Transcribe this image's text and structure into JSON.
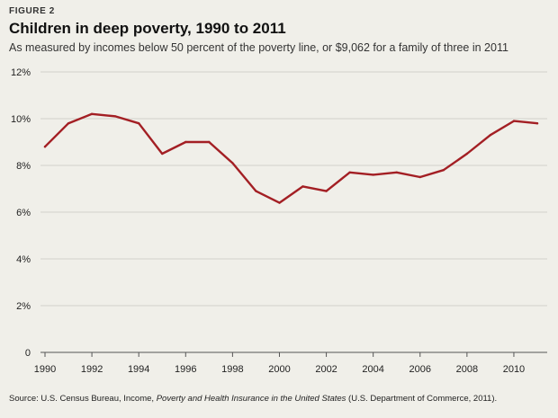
{
  "figure_label": "FIGURE 2",
  "chart_data": {
    "type": "line",
    "title": "Children in deep poverty, 1990 to 2011",
    "subtitle": "As measured by incomes below 50 percent of the poverty line, or $9,062 for a family of three in 2011",
    "xlabel": "",
    "ylabel": "",
    "ylim": [
      0,
      12
    ],
    "yticks": [
      0,
      2,
      4,
      6,
      8,
      10,
      12
    ],
    "ytick_labels": [
      "0",
      "2%",
      "4%",
      "6%",
      "8%",
      "10%",
      "12%"
    ],
    "xlim": [
      1990,
      2011
    ],
    "xticks": [
      1990,
      1992,
      1994,
      1996,
      1998,
      2000,
      2002,
      2004,
      2006,
      2008,
      2010
    ],
    "xtick_labels": [
      "1990",
      "1992",
      "1994",
      "1996",
      "1998",
      "2000",
      "2002",
      "2004",
      "2006",
      "2008",
      "2010"
    ],
    "grid": true,
    "series": [
      {
        "name": "Children in deep poverty",
        "color": "#a31f24",
        "x": [
          1990,
          1991,
          1992,
          1993,
          1994,
          1995,
          1996,
          1997,
          1998,
          1999,
          2000,
          2001,
          2002,
          2003,
          2004,
          2005,
          2006,
          2007,
          2008,
          2009,
          2010,
          2011
        ],
        "values": [
          8.8,
          9.8,
          10.2,
          10.1,
          9.8,
          8.5,
          9.0,
          9.0,
          8.1,
          6.9,
          6.4,
          7.1,
          6.9,
          7.7,
          7.6,
          7.7,
          7.5,
          7.8,
          8.5,
          9.3,
          9.9,
          9.8
        ]
      }
    ]
  },
  "source": {
    "prefix": "Source: U.S. Census Bureau, Income, ",
    "italic": "Poverty and Health Insurance in the United States",
    "suffix": " (U.S. Department of Commerce, 2011)."
  },
  "colors": {
    "background": "#f0efe9",
    "grid": "#d2d2cc",
    "axis": "#555555",
    "line": "#a31f24"
  }
}
